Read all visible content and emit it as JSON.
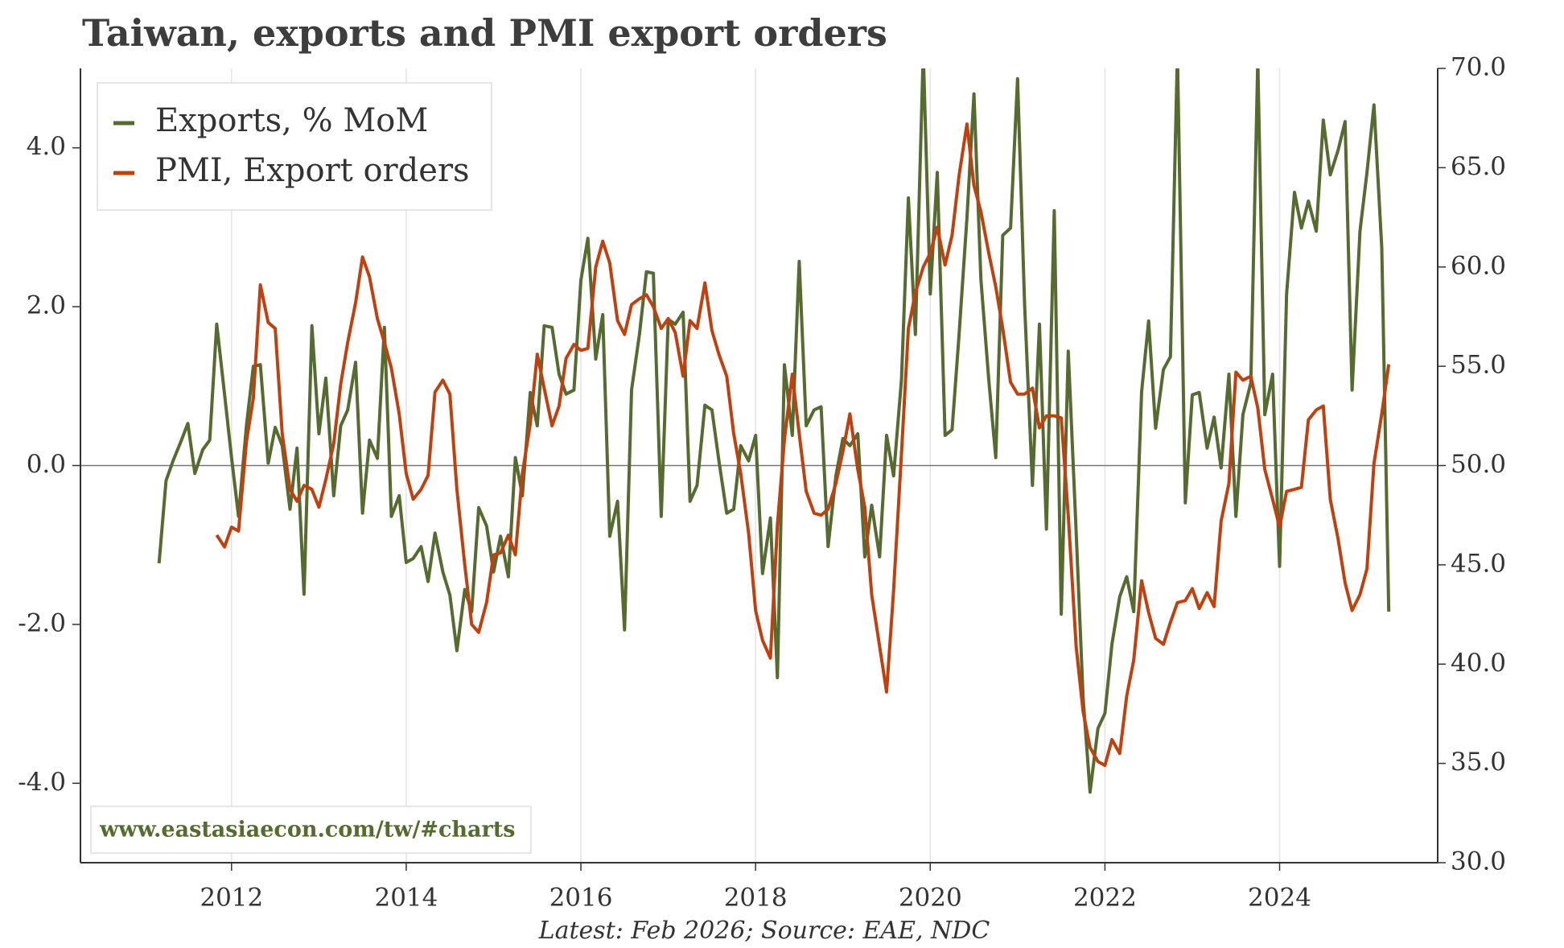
{
  "chart_data": {
    "type": "line",
    "title": "Taiwan, exports and PMI export orders",
    "caption": "Latest: Feb 2026; Source: EAE, NDC",
    "watermark": "www.eastasiaecon.com/tw/#charts",
    "legend": "upper left",
    "grid": true,
    "hline": 0,
    "xlim": [
      2010.27,
      2025.81
    ],
    "xticks": [
      2012,
      2014,
      2016,
      2018,
      2020,
      2022,
      2024
    ],
    "ylim": [
      -5,
      5
    ],
    "yticks": [
      {
        "value": -4,
        "label": "-4.0"
      },
      {
        "value": -2,
        "label": "-2.0"
      },
      {
        "value": 0,
        "label": "0.0"
      },
      {
        "value": 2,
        "label": "2.0"
      },
      {
        "value": 4,
        "label": "4.0"
      }
    ],
    "y2lim": [
      30,
      70
    ],
    "y2ticks": [
      {
        "value": 30,
        "label": "30.0"
      },
      {
        "value": 35,
        "label": "35.0"
      },
      {
        "value": 40,
        "label": "40.0"
      },
      {
        "value": 45,
        "label": "45.0"
      },
      {
        "value": 50,
        "label": "50.0"
      },
      {
        "value": 55,
        "label": "55.0"
      },
      {
        "value": 60,
        "label": "60.0"
      },
      {
        "value": 65,
        "label": "65.0"
      },
      {
        "value": 70,
        "label": "70.0"
      }
    ],
    "x": [
      2011.17,
      2011.25,
      2011.33,
      2011.42,
      2011.5,
      2011.58,
      2011.67,
      2011.75,
      2011.83,
      2011.92,
      2012,
      2012.08,
      2012.17,
      2012.25,
      2012.33,
      2012.42,
      2012.5,
      2012.58,
      2012.67,
      2012.75,
      2012.83,
      2012.92,
      2013,
      2013.08,
      2013.17,
      2013.25,
      2013.33,
      2013.42,
      2013.5,
      2013.58,
      2013.67,
      2013.75,
      2013.83,
      2013.92,
      2014,
      2014.08,
      2014.17,
      2014.25,
      2014.33,
      2014.42,
      2014.5,
      2014.58,
      2014.67,
      2014.75,
      2014.83,
      2014.92,
      2015,
      2015.08,
      2015.17,
      2015.25,
      2015.33,
      2015.42,
      2015.5,
      2015.58,
      2015.67,
      2015.75,
      2015.83,
      2015.92,
      2016,
      2016.08,
      2016.17,
      2016.25,
      2016.33,
      2016.42,
      2016.5,
      2016.58,
      2016.67,
      2016.75,
      2016.83,
      2016.92,
      2017,
      2017.08,
      2017.17,
      2017.25,
      2017.33,
      2017.42,
      2017.5,
      2017.58,
      2017.67,
      2017.75,
      2017.83,
      2017.92,
      2018,
      2018.08,
      2018.17,
      2018.25,
      2018.33,
      2018.42,
      2018.5,
      2018.58,
      2018.67,
      2018.75,
      2018.83,
      2018.92,
      2019,
      2019.08,
      2019.17,
      2019.25,
      2019.33,
      2019.42,
      2019.5,
      2019.58,
      2019.67,
      2019.75,
      2019.83,
      2019.92,
      2020,
      2020.08,
      2020.17,
      2020.25,
      2020.33,
      2020.42,
      2020.5,
      2020.58,
      2020.67,
      2020.75,
      2020.83,
      2020.92,
      2021,
      2021.08,
      2021.17,
      2021.25,
      2021.33,
      2021.42,
      2021.5,
      2021.58,
      2021.67,
      2021.75,
      2021.83,
      2021.92,
      2022,
      2022.08,
      2022.17,
      2022.25,
      2022.33,
      2022.42,
      2022.5,
      2022.58,
      2022.67,
      2022.75,
      2022.83,
      2022.92,
      2023,
      2023.08,
      2023.17,
      2023.25,
      2023.33,
      2023.42,
      2023.5,
      2023.58,
      2023.67,
      2023.75,
      2023.83,
      2023.92,
      2024,
      2024.08,
      2024.17,
      2024.25,
      2024.33,
      2024.42,
      2024.5,
      2024.58,
      2024.67,
      2024.75,
      2024.83,
      2024.92,
      2025,
      2025.08,
      2025.17,
      2025.25
    ],
    "series": [
      {
        "name": "Exports, % MoM",
        "color": "#556b2f",
        "values": [
          -1.23,
          -0.19,
          0.06,
          0.3,
          0.53,
          -0.1,
          0.2,
          0.32,
          1.78,
          0.9,
          0.1,
          -0.64,
          0.5,
          1.25,
          1.27,
          0.03,
          0.48,
          0.25,
          -0.55,
          0.22,
          -1.62,
          1.76,
          0.4,
          1.1,
          -0.38,
          0.5,
          0.7,
          1.3,
          -0.6,
          0.32,
          0.09,
          1.74,
          -0.64,
          -0.38,
          -1.22,
          -1.17,
          -1.02,
          -1.46,
          -0.85,
          -1.34,
          -1.63,
          -2.33,
          -1.56,
          -1.84,
          -0.53,
          -0.76,
          -1.34,
          -0.89,
          -1.4,
          0.1,
          -0.38,
          0.92,
          0.5,
          1.76,
          1.74,
          1.15,
          0.9,
          0.95,
          2.33,
          2.86,
          1.34,
          1.9,
          -0.89,
          -0.45,
          -2.07,
          0.95,
          1.65,
          2.44,
          2.42,
          -0.64,
          1.84,
          1.78,
          1.93,
          -0.45,
          -0.25,
          0.76,
          0.7,
          0.06,
          -0.6,
          -0.55,
          0.25,
          0.06,
          0.38,
          -1.36,
          -0.66,
          -2.67,
          1.27,
          0.38,
          2.57,
          0.5,
          0.7,
          0.74,
          -1.02,
          -0.13,
          0.34,
          0.25,
          0.4,
          -1.15,
          -0.5,
          -1.15,
          0.38,
          -0.13,
          1.08,
          3.37,
          1.65,
          5.2,
          2.16,
          3.69,
          0.38,
          0.45,
          1.65,
          3.12,
          4.68,
          2.35,
          1.08,
          0.1,
          2.9,
          2.99,
          4.87,
          2.04,
          -0.25,
          1.78,
          -0.8,
          3.21,
          -1.87,
          1.44,
          -0.83,
          -2.93,
          -4.11,
          -3.31,
          -3.12,
          -2.25,
          -1.65,
          -1.4,
          -1.84,
          0.93,
          1.82,
          0.47,
          1.21,
          1.37,
          5.2,
          -0.47,
          0.89,
          0.92,
          0.22,
          0.61,
          -0.03,
          1.15,
          -0.64,
          0.64,
          1.04,
          5.1,
          0.64,
          1.15,
          -1.27,
          2.16,
          3.44,
          2.99,
          3.33,
          2.95,
          4.35,
          3.66,
          3.97,
          4.33,
          0.95,
          2.95,
          3.69,
          4.54,
          2.74,
          -1.84
        ]
      },
      {
        "name": "PMI, Export orders",
        "color": "#c0400f",
        "axis": "y2",
        "values": [
          null,
          null,
          null,
          null,
          null,
          null,
          null,
          null,
          46.5,
          45.9,
          46.9,
          46.7,
          51.2,
          53.4,
          59.1,
          57.2,
          56.9,
          51.6,
          48.8,
          48.2,
          49.0,
          48.8,
          47.9,
          49.3,
          51.1,
          54.1,
          56.2,
          58.2,
          60.5,
          59.5,
          57.4,
          56.2,
          54.9,
          52.6,
          49.6,
          48.3,
          48.8,
          49.5,
          53.7,
          54.3,
          53.6,
          48.8,
          45.0,
          42.0,
          41.6,
          43.1,
          45.5,
          45.6,
          46.5,
          45.5,
          49.6,
          52.1,
          55.6,
          53.9,
          52.0,
          53.0,
          55.4,
          56.1,
          55.8,
          55.9,
          60.0,
          61.3,
          60.2,
          57.3,
          56.6,
          58.1,
          58.4,
          58.6,
          58.0,
          56.9,
          57.4,
          56.7,
          54.5,
          57.3,
          56.9,
          59.2,
          56.8,
          55.6,
          54.5,
          51.6,
          49.6,
          46.6,
          42.7,
          41.2,
          40.3,
          47.0,
          51.3,
          54.6,
          51.6,
          48.7,
          47.6,
          47.5,
          47.8,
          49.1,
          50.7,
          52.6,
          49.8,
          47.9,
          43.5,
          40.9,
          38.6,
          43.7,
          50.6,
          56.9,
          58.7,
          60.0,
          60.7,
          62.0,
          60.1,
          61.6,
          64.6,
          67.2,
          64.1,
          62.8,
          60.7,
          59.0,
          56.9,
          54.2,
          53.6,
          53.6,
          53.9,
          51.9,
          52.5,
          52.5,
          52.4,
          47.5,
          40.9,
          37.6,
          35.8,
          35.1,
          34.9,
          36.2,
          35.5,
          38.4,
          40.2,
          44.2,
          42.6,
          41.3,
          41.0,
          42.1,
          43.1,
          43.2,
          43.8,
          42.8,
          43.6,
          42.9,
          47.2,
          49.1,
          54.7,
          54.3,
          54.5,
          52.9,
          49.8,
          48.3,
          46.9,
          48.7,
          48.8,
          48.9,
          52.3,
          52.8,
          53.0,
          48.3,
          46.3,
          44.1,
          42.7,
          43.5,
          44.8,
          50.1,
          52.6,
          55.1
        ]
      }
    ]
  }
}
